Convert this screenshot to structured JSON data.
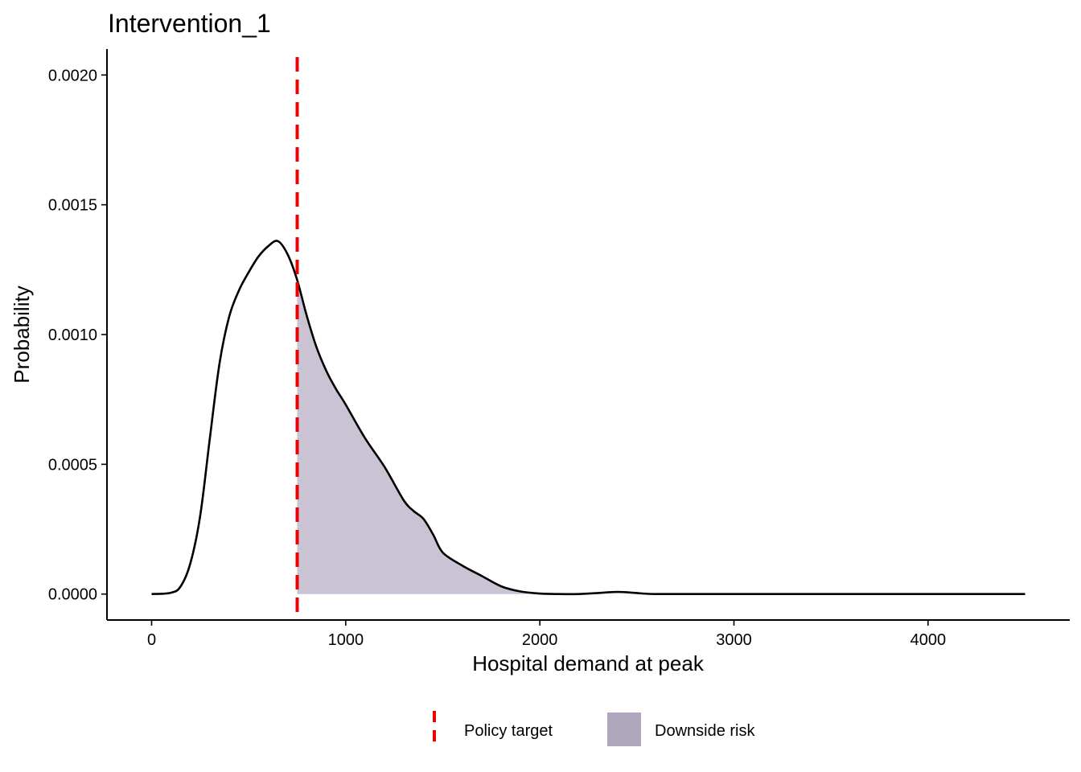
{
  "chart_data": {
    "type": "area",
    "title": "Intervention_1",
    "xlabel": "Hospital demand at peak",
    "ylabel": "Probability",
    "xlim": [
      -230,
      4730
    ],
    "ylim": [
      -0.0001,
      0.0021
    ],
    "x_ticks": [
      0,
      1000,
      2000,
      3000,
      4000
    ],
    "x_tick_labels": [
      "0",
      "1000",
      "2000",
      "3000",
      "4000"
    ],
    "y_ticks": [
      0,
      0.0005,
      0.001,
      0.0015,
      0.002
    ],
    "y_tick_labels": [
      "0.0000",
      "0.0005",
      "0.0010",
      "0.0015",
      "0.0020"
    ],
    "grid": false,
    "legend_position": "bottom",
    "policy_target": 750,
    "series": [
      {
        "name": "Density",
        "color": "#000000",
        "x": [
          0,
          100,
          150,
          200,
          250,
          300,
          350,
          400,
          450,
          500,
          550,
          600,
          650,
          700,
          750,
          800,
          850,
          900,
          950,
          1000,
          1100,
          1200,
          1300,
          1350,
          1400,
          1450,
          1500,
          1600,
          1700,
          1800,
          1900,
          2000,
          2100,
          2200,
          2300,
          2400,
          2500,
          2600,
          3000,
          4000,
          4500
        ],
        "y": [
          0,
          5e-06,
          3e-05,
          0.00012,
          0.0003,
          0.0006,
          0.00089,
          0.00107,
          0.00117,
          0.00124,
          0.0013,
          0.00134,
          0.00136,
          0.00131,
          0.00121,
          0.00107,
          0.00095,
          0.00086,
          0.00079,
          0.00073,
          0.0006,
          0.00049,
          0.00036,
          0.00032,
          0.00029,
          0.00023,
          0.00016,
          0.00011,
          7e-05,
          3e-05,
          1e-05,
          2e-06,
          0,
          0,
          4e-06,
          8e-06,
          4e-06,
          0,
          0,
          0,
          0
        ]
      }
    ],
    "legend": [
      {
        "label": "Policy target",
        "kind": "dashed-line",
        "color": "#ee0000"
      },
      {
        "label": "Downside risk",
        "kind": "fill",
        "color": "#aea6bc"
      }
    ],
    "colors": {
      "curve": "#000000",
      "policy_line": "#ee0000",
      "area_fill": "#c9c3d4",
      "legend_fill": "#aea6bc"
    }
  }
}
